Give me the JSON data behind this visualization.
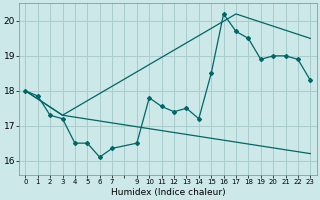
{
  "title": "",
  "xlabel": "Humidex (Indice chaleur)",
  "bg_color": "#cce8e8",
  "grid_color": "#aacccc",
  "line_color": "#006666",
  "xlim": [
    -0.5,
    23.5
  ],
  "ylim": [
    15.6,
    20.5
  ],
  "yticks": [
    16,
    17,
    18,
    19,
    20
  ],
  "xtick_labels": [
    "0",
    "1",
    "2",
    "3",
    "4",
    "5",
    "6",
    "7",
    "",
    "9",
    "10",
    "11",
    "12",
    "13",
    "14",
    "15",
    "16",
    "17",
    "18",
    "19",
    "20",
    "21",
    "22",
    "23"
  ],
  "curve1_x": [
    0,
    1,
    2,
    3,
    4,
    5,
    6,
    7,
    9,
    10,
    11,
    12,
    13,
    14,
    15,
    16,
    17,
    18,
    19,
    20,
    21,
    22,
    23
  ],
  "curve1_y": [
    18.0,
    17.85,
    17.3,
    17.2,
    16.5,
    16.5,
    16.1,
    16.35,
    16.5,
    17.8,
    17.55,
    17.4,
    17.5,
    17.2,
    18.5,
    20.2,
    19.7,
    19.5,
    18.9,
    19.0,
    19.0,
    18.9,
    18.3
  ],
  "curve2_x": [
    0,
    3,
    23
  ],
  "curve2_y": [
    18.0,
    17.3,
    16.2
  ],
  "curve3_x": [
    0,
    3,
    17,
    23
  ],
  "curve3_y": [
    18.0,
    17.3,
    20.2,
    19.5
  ]
}
